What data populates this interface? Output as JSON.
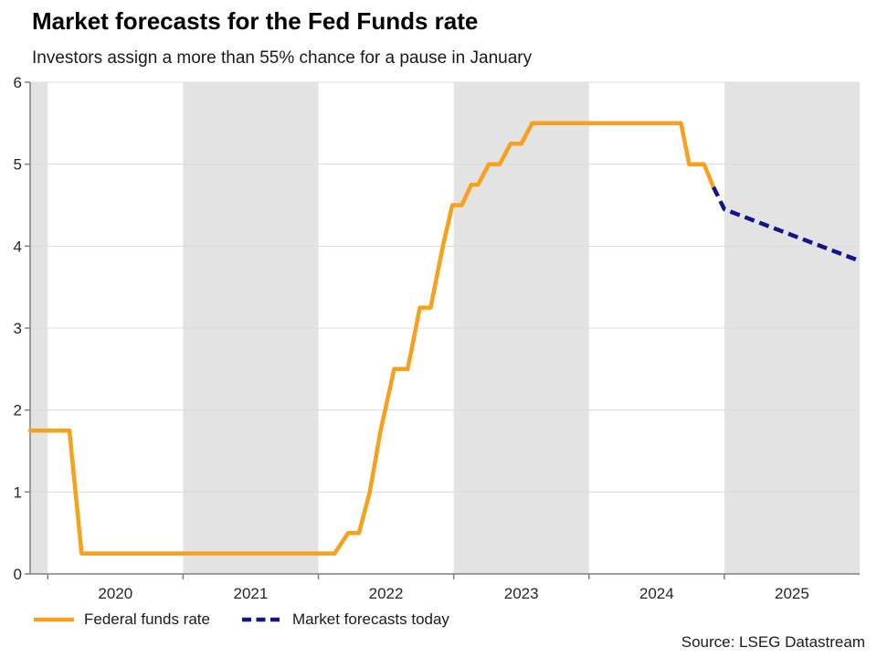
{
  "title": "Market forecasts for the Fed Funds rate",
  "subtitle": "Investors assign a more than 55% chance for a pause in January",
  "source": "Source: LSEG Datastream",
  "legend": [
    {
      "label": "Federal funds rate",
      "style": "solid",
      "color": "#F7A11B"
    },
    {
      "label": "Market forecasts today",
      "style": "dashed",
      "color": "#13138B"
    }
  ],
  "chart_data": {
    "type": "line",
    "title": "Market forecasts for the Fed Funds rate",
    "subtitle": "Investors assign a more than 55% chance for a pause in January",
    "xlabel": "",
    "ylabel": "",
    "x_domain": [
      2019.87,
      2026.0
    ],
    "y_domain": [
      0,
      6
    ],
    "y_ticks": [
      0,
      1,
      2,
      3,
      4,
      5,
      6
    ],
    "x_ticks": [
      2020,
      2021,
      2022,
      2023,
      2024,
      2025
    ],
    "x_tick_labels": [
      "2020",
      "2021",
      "2022",
      "2023",
      "2024",
      "2025"
    ],
    "grid": "horizontal",
    "legend_position": "bottom-left",
    "band_color": "#e3e3e3",
    "grid_color": "#dcdcdc",
    "axis_color": "#7f7f7f",
    "text_color": "#262626",
    "shaded_bands": [
      [
        2019.87,
        2020.0
      ],
      [
        2021.0,
        2022.0
      ],
      [
        2023.0,
        2024.0
      ],
      [
        2025.0,
        2026.0
      ]
    ],
    "series": [
      {
        "name": "Federal funds rate",
        "color": "#F7A11B",
        "dash": null,
        "points": [
          [
            2019.87,
            1.75
          ],
          [
            2020.16,
            1.75
          ],
          [
            2020.25,
            0.25
          ],
          [
            2022.12,
            0.25
          ],
          [
            2022.22,
            0.5
          ],
          [
            2022.3,
            0.5
          ],
          [
            2022.38,
            1.0
          ],
          [
            2022.46,
            1.75
          ],
          [
            2022.56,
            2.5
          ],
          [
            2022.66,
            2.5
          ],
          [
            2022.75,
            3.25
          ],
          [
            2022.83,
            3.25
          ],
          [
            2022.92,
            4.0
          ],
          [
            2022.99,
            4.5
          ],
          [
            2023.06,
            4.5
          ],
          [
            2023.13,
            4.75
          ],
          [
            2023.18,
            4.75
          ],
          [
            2023.26,
            5.0
          ],
          [
            2023.34,
            5.0
          ],
          [
            2023.42,
            5.25
          ],
          [
            2023.5,
            5.25
          ],
          [
            2023.58,
            5.5
          ],
          [
            2024.68,
            5.5
          ],
          [
            2024.74,
            5.0
          ],
          [
            2024.85,
            5.0
          ],
          [
            2024.92,
            4.72
          ]
        ]
      },
      {
        "name": "Market forecasts today",
        "color": "#13138B",
        "dash": [
          11,
          6
        ],
        "points": [
          [
            2024.92,
            4.72
          ],
          [
            2025.0,
            4.45
          ],
          [
            2026.0,
            3.82
          ]
        ]
      }
    ]
  }
}
